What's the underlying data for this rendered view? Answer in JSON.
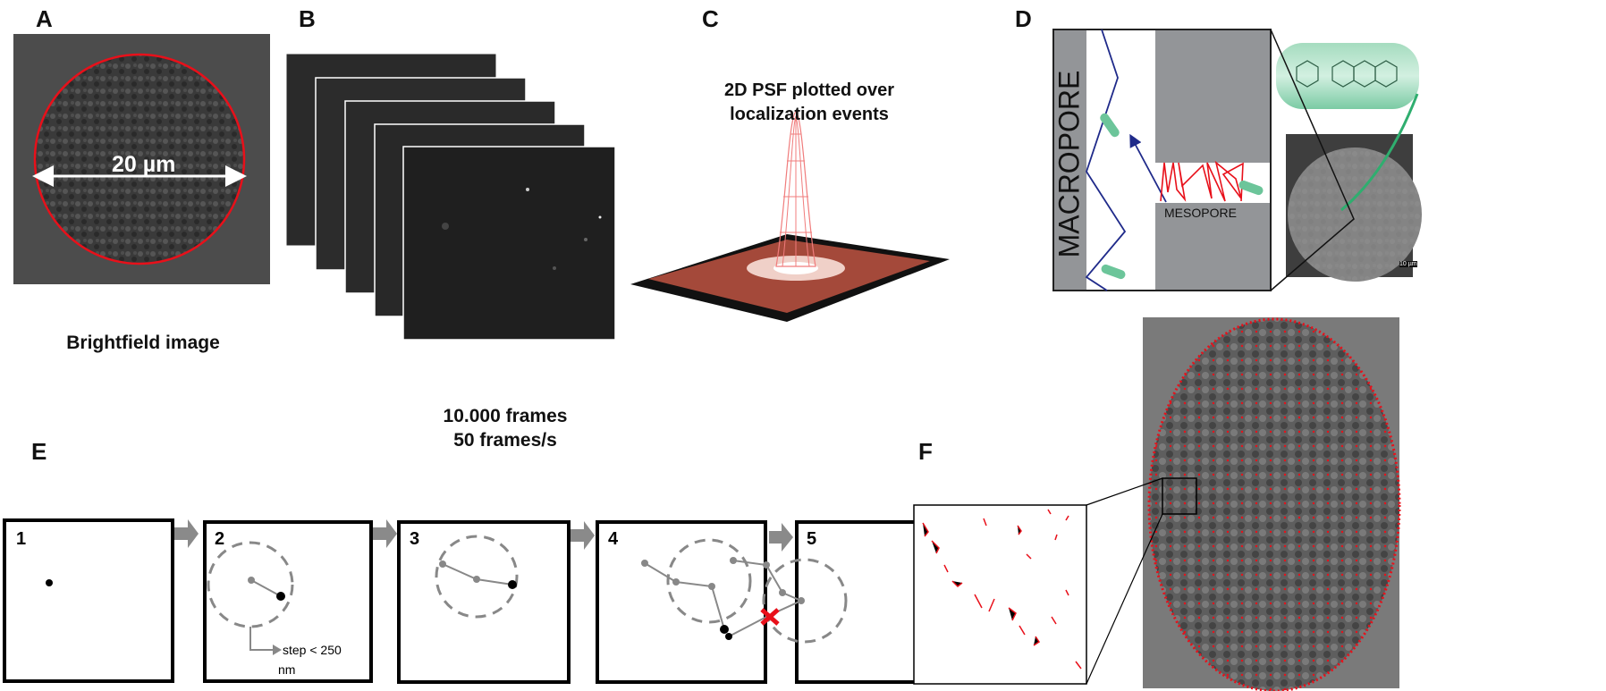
{
  "panels": {
    "a": {
      "label": "A",
      "scale_text": "20 µm",
      "caption": "Brightfield image"
    },
    "b": {
      "label": "B",
      "caption_line1": "10.000 frames",
      "caption_line2": "50 frames/s"
    },
    "c": {
      "label": "C",
      "title_line1": "2D PSF plotted over",
      "title_line2": "localization events"
    },
    "d": {
      "label": "D",
      "macropore": "MACROPORE",
      "mesopore": "MESOPORE",
      "scale_bar": "10 µm"
    },
    "e": {
      "label": "E",
      "steps": [
        "1",
        "2",
        "3",
        "4",
        "5"
      ],
      "step_note_line1": "step < 250",
      "step_note_line2": "nm"
    },
    "f": {
      "label": "F"
    }
  },
  "colors": {
    "red": "#e8101a",
    "navy": "#1f2a8a",
    "gray": "#939598",
    "green": "#6cc59a"
  }
}
